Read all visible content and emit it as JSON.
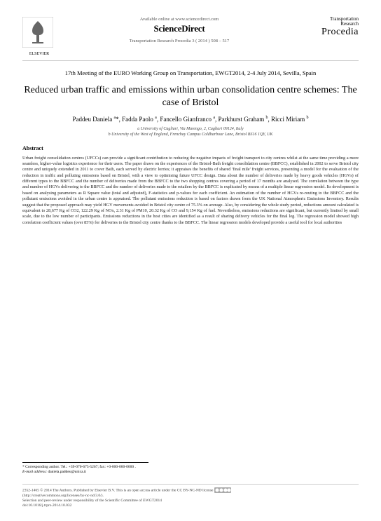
{
  "header": {
    "available": "Available online at www.sciencedirect.com",
    "sciencedirect": "ScienceDirect",
    "journal_line": "Transportation Research Procedia 3 ( 2014 ) 508 – 517",
    "elsevier_label": "ELSEVIER",
    "procedia_top1": "Transportation",
    "procedia_top2": "Research",
    "procedia_main": "Procedia"
  },
  "conference": "17th Meeting of the EURO Working Group on Transportation, EWGT2014, 2-4 July 2014, Sevilla, Spain",
  "title": "Reduced urban traffic and emissions within urban consolidation centre schemes: The case of Bristol",
  "authors_html": "Paddeu Daniela <sup>a</sup>*, Fadda Paolo <sup>a</sup>, Fancello Gianfranco <sup>a</sup>, Parkhurst Graham <sup>b</sup>, Ricci Miriam <sup>b</sup>",
  "affiliations": [
    "a University of Cagliari, Via Marengo, 2, Cagliari 09124, Italy",
    "b University of the West of England, Frenchay Campus Coldharbour Lane, Bristol BS16 1QY, UK"
  ],
  "abstract_heading": "Abstract",
  "abstract": "Urban freight consolidation centres (UFCCs) can provide a significant contribution to reducing the negative impacts of freight transport to city centres whilst at the same time providing a more seamless, higher-value logistics experience for their users. The paper draws on the experiences of the Bristol-Bath freight consolidation centre (BBFCC), established in 2002 to serve Bristol city centre and uniquely extended in 2011 to cover Bath, each served by electric lorries; it appraises the benefits of shared 'final mile' freight services, presenting a model for the evaluation of the reduction in traffic and polluting emissions based on Bristol, with a view to optimising future UFCC design. Data about the number of deliveries made by heavy goods vehicles (HGVs) of different types to the BBFCC and the number of deliveries made from the BBFCC to the two shopping centres covering a period of 17 months are analysed. The correlation between the type and number of HGVs delivering to the BBFCC and the number of deliveries made to the retailers by the BBFCC is explicated by means of a multiple linear regression model. Its development is based on analysing parameters as R Square value (total and adjusted), F-statistics and p-values for each coefficient. An estimation of the number of HGVs re-routing to the BBFCC and the pollutant emissions avoided in the urban centre is appraised. The pollutant emissions reduction is based on factors drawn from the UK National Atmospheric Emissions Inventory. Results suggest that the proposed approach may yield HGV movements avoided in Bristol city centre of 75.3% on average. Also, by considering the whole study period, reductions amount calculated is equivalent to 28,677 Kg of CO2, 122.29 Kg of NOx, 2.31 Kg of PM10, 20.32 Kg of CO and 9,154 Kg of fuel. Nevertheless, emissions reductions are significant, but currently limited by small scale, due to the low number of participants. Emissions reductions in the host cities are identified as a result of sharing delivery vehicles for the final leg. The regression model showed high correlation coefficient values (over 85%) for deliveries to the Bristol city centre thanks to the BBFCC. The linear regression models developed provide a useful tool for local authorities",
  "corresponding": {
    "line1": "* Corresponding author. Tel.: +39-070-675-5267; fax: +0-000-000-0000 .",
    "line2_label": "E-mail address:",
    "line2_value": "daniela.paddeu@unica.it"
  },
  "footer": {
    "line1": "2352-1465 © 2014 The Authors. Published by Elsevier B.V. This is an open access article under the CC BY-NC-ND license",
    "line2": "(http://creativecommons.org/licenses/by-nc-nd/3.0/).",
    "line3": "Selection and peer-review under responsibility of the Scientific Committee of EWGT2014",
    "doi": "doi:10.1016/j.trpro.2014.10.032"
  },
  "colors": {
    "text": "#000000",
    "muted": "#555555",
    "rule": "#cccccc",
    "elsevier_orange": "#ed6b0e"
  }
}
